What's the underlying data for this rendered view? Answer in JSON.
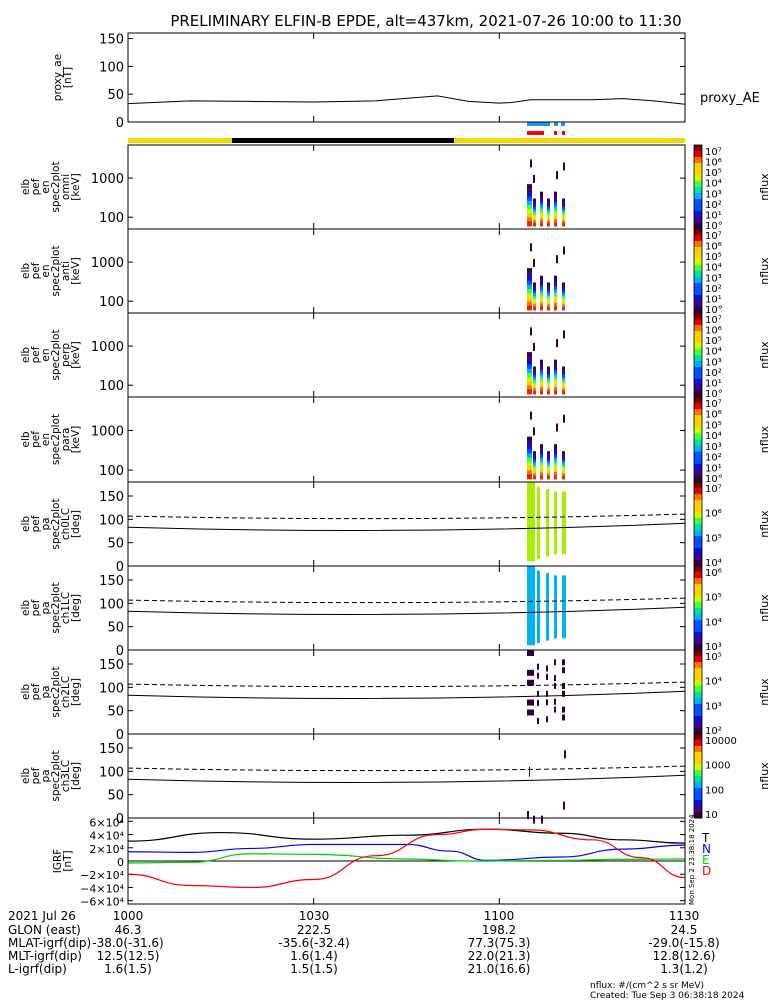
{
  "title": "PRELIMINARY ELFIN-B EPDE, alt=437km, 2021-07-26 10:00 to 11:30",
  "colors": {
    "panel_border": "#000000",
    "yellow_bar": "#f5d800",
    "black_bar": "#000000",
    "blue_marker": "#1e90ff",
    "red_marker": "#ff0000",
    "N_color": "#0000ff",
    "E_color": "#00cc00",
    "D_color": "#ff0000",
    "T_color": "#000000"
  },
  "chart_data": [
    {
      "id": "proxy-ae",
      "type": "line",
      "ylabel": [
        "proxy_ae",
        "[nT]"
      ],
      "yticks": [
        "150",
        "100",
        "50",
        "0"
      ],
      "ylim": [
        0,
        160
      ],
      "series_label": "proxy_AE",
      "x_minutes": [
        0,
        10,
        20,
        30,
        40,
        50,
        55,
        60,
        62,
        65,
        75,
        80,
        85,
        90
      ],
      "y": [
        33,
        38,
        37,
        36,
        38,
        47,
        37,
        34,
        35,
        40,
        40,
        42,
        38,
        32
      ]
    },
    {
      "id": "spec-omni",
      "type": "heatmap",
      "ylabel": [
        "elb",
        "pef",
        "en",
        "spec2plot",
        "omni",
        "[keV]"
      ],
      "yticks": [
        "1000",
        "100"
      ],
      "ylim": [
        50,
        7000
      ],
      "yscale": "log",
      "colorbar": {
        "label": "nflux",
        "ticks": [
          "10⁷",
          "10⁶",
          "10⁵",
          "10⁴",
          "10³",
          "10²",
          "10¹",
          "10°"
        ]
      }
    },
    {
      "id": "spec-anti",
      "type": "heatmap",
      "ylabel": [
        "elb",
        "pef",
        "en",
        "spec2plot",
        "anti",
        "[keV]"
      ],
      "yticks": [
        "1000",
        "100"
      ],
      "ylim": [
        50,
        7000
      ],
      "yscale": "log",
      "colorbar": {
        "label": "nflux",
        "ticks": [
          "10⁷",
          "10⁶",
          "10⁵",
          "10⁴",
          "10³",
          "10²",
          "10¹",
          "10°"
        ]
      }
    },
    {
      "id": "spec-perp",
      "type": "heatmap",
      "ylabel": [
        "elb",
        "pef",
        "en",
        "spec2plot",
        "perp",
        "[keV]"
      ],
      "yticks": [
        "1000",
        "100"
      ],
      "ylim": [
        50,
        7000
      ],
      "yscale": "log",
      "colorbar": {
        "label": "nflux",
        "ticks": [
          "10⁷",
          "10⁶",
          "10⁵",
          "10⁴",
          "10³",
          "10²",
          "10¹",
          "10°"
        ]
      }
    },
    {
      "id": "spec-para",
      "type": "heatmap",
      "ylabel": [
        "elb",
        "pef",
        "en",
        "spec2plot",
        "para",
        "[keV]"
      ],
      "yticks": [
        "1000",
        "100"
      ],
      "ylim": [
        50,
        7000
      ],
      "yscale": "log",
      "colorbar": {
        "label": "nflux",
        "ticks": [
          "10⁷",
          "10⁶",
          "10⁵",
          "10⁴",
          "10³",
          "10²",
          "10¹",
          "10°"
        ]
      }
    },
    {
      "id": "pa-ch0",
      "type": "heatmap",
      "ylabel": [
        "elb",
        "pef",
        "pa",
        "spec2plot",
        "ch0LC",
        "[deg]"
      ],
      "yticks": [
        "150",
        "100",
        "50",
        "0"
      ],
      "ylim": [
        0,
        180
      ],
      "colorbar": {
        "label": "nflux",
        "ticks": [
          "10⁷",
          "10⁶",
          "10⁵",
          "10⁴"
        ]
      }
    },
    {
      "id": "pa-ch1",
      "type": "heatmap",
      "ylabel": [
        "elb",
        "pef",
        "pa",
        "spec2plot",
        "ch1LC",
        "[deg]"
      ],
      "yticks": [
        "150",
        "100",
        "50",
        "0"
      ],
      "ylim": [
        0,
        180
      ],
      "colorbar": {
        "label": "nflux",
        "ticks": [
          "10⁶",
          "10⁵",
          "10⁴",
          "10³"
        ]
      }
    },
    {
      "id": "pa-ch2",
      "type": "heatmap",
      "ylabel": [
        "elb",
        "pef",
        "pa",
        "spec2plot",
        "ch2LC",
        "[deg]"
      ],
      "yticks": [
        "150",
        "100",
        "50",
        "0"
      ],
      "ylim": [
        0,
        180
      ],
      "colorbar": {
        "label": "nflux",
        "ticks": [
          "10⁵",
          "10⁴",
          "10³",
          "10²"
        ]
      }
    },
    {
      "id": "pa-ch3",
      "type": "heatmap",
      "ylabel": [
        "elb",
        "pef",
        "pa",
        "spec2plot",
        "ch3LC",
        "[deg]"
      ],
      "yticks": [
        "150",
        "100",
        "50",
        "0"
      ],
      "ylim": [
        0,
        180
      ],
      "colorbar": {
        "label": "nflux",
        "ticks": [
          "10000",
          "1000",
          "100",
          "10"
        ]
      }
    },
    {
      "id": "igrf",
      "type": "line",
      "ylabel": [
        "IGRF",
        "[nT]"
      ],
      "yticks": [
        "6×10⁴",
        "4×10⁴",
        "2×10⁴",
        "0",
        "−2×10⁴",
        "−4×10⁴",
        "−6×10⁴"
      ],
      "ylim": [
        -65000,
        65000
      ],
      "series": [
        {
          "name": "T",
          "x_minutes": [
            0,
            15,
            30,
            45,
            58,
            70,
            80,
            90
          ],
          "values": [
            30000,
            43000,
            33000,
            39000,
            48000,
            42000,
            32000,
            27000
          ]
        },
        {
          "name": "N",
          "x_minutes": [
            0,
            10,
            20,
            30,
            45,
            52,
            58,
            70,
            80,
            90
          ],
          "values": [
            14000,
            13000,
            19000,
            25000,
            25000,
            15000,
            1000,
            6000,
            18000,
            24000
          ]
        },
        {
          "name": "E",
          "x_minutes": [
            0,
            10,
            20,
            30,
            45,
            55,
            70,
            80,
            90
          ],
          "values": [
            -3000,
            -2000,
            11000,
            10000,
            3000,
            0,
            1000,
            2500,
            3000
          ]
        },
        {
          "name": "D",
          "x_minutes": [
            0,
            10,
            20,
            30,
            40,
            50,
            58,
            65,
            75,
            83,
            90
          ],
          "values": [
            -20000,
            -37000,
            -40000,
            -28000,
            8000,
            40000,
            48000,
            47000,
            32000,
            5000,
            -25000
          ]
        }
      ]
    }
  ],
  "x_axis": {
    "tick_labels": [
      "1000",
      "1030",
      "1100",
      "1130"
    ],
    "tick_minutes": [
      0,
      30,
      60,
      90
    ],
    "rows": [
      {
        "label": "2021 Jul 26",
        "values": [
          "1000",
          "1030",
          "1100",
          "1130"
        ]
      },
      {
        "label": "GLON (east)",
        "values": [
          "46.3",
          "222.5",
          "198.2",
          "24.5"
        ]
      },
      {
        "label": "MLAT-igrf(dip)",
        "values": [
          "-38.0(-31.6)",
          "-35.6(-32.4)",
          "77.3(75.3)",
          "-29.0(-15.8)"
        ]
      },
      {
        "label": "MLT-igrf(dip)",
        "values": [
          "12.5(12.5)",
          "1.6(1.4)",
          "22.0(21.3)",
          "12.8(12.6)"
        ]
      },
      {
        "label": "L-igrf(dip)",
        "values": [
          "1.6(1.5)",
          "1.5(1.5)",
          "21.0(16.6)",
          "1.3(1.2)"
        ]
      }
    ]
  },
  "footer": {
    "units": "nflux: #/(cm^2 s sr MeV)",
    "created": "Created: Tue Sep  3 06:38:18 2024",
    "vertical_stamp": "Mon Sep  2 23:38:18 2024"
  }
}
